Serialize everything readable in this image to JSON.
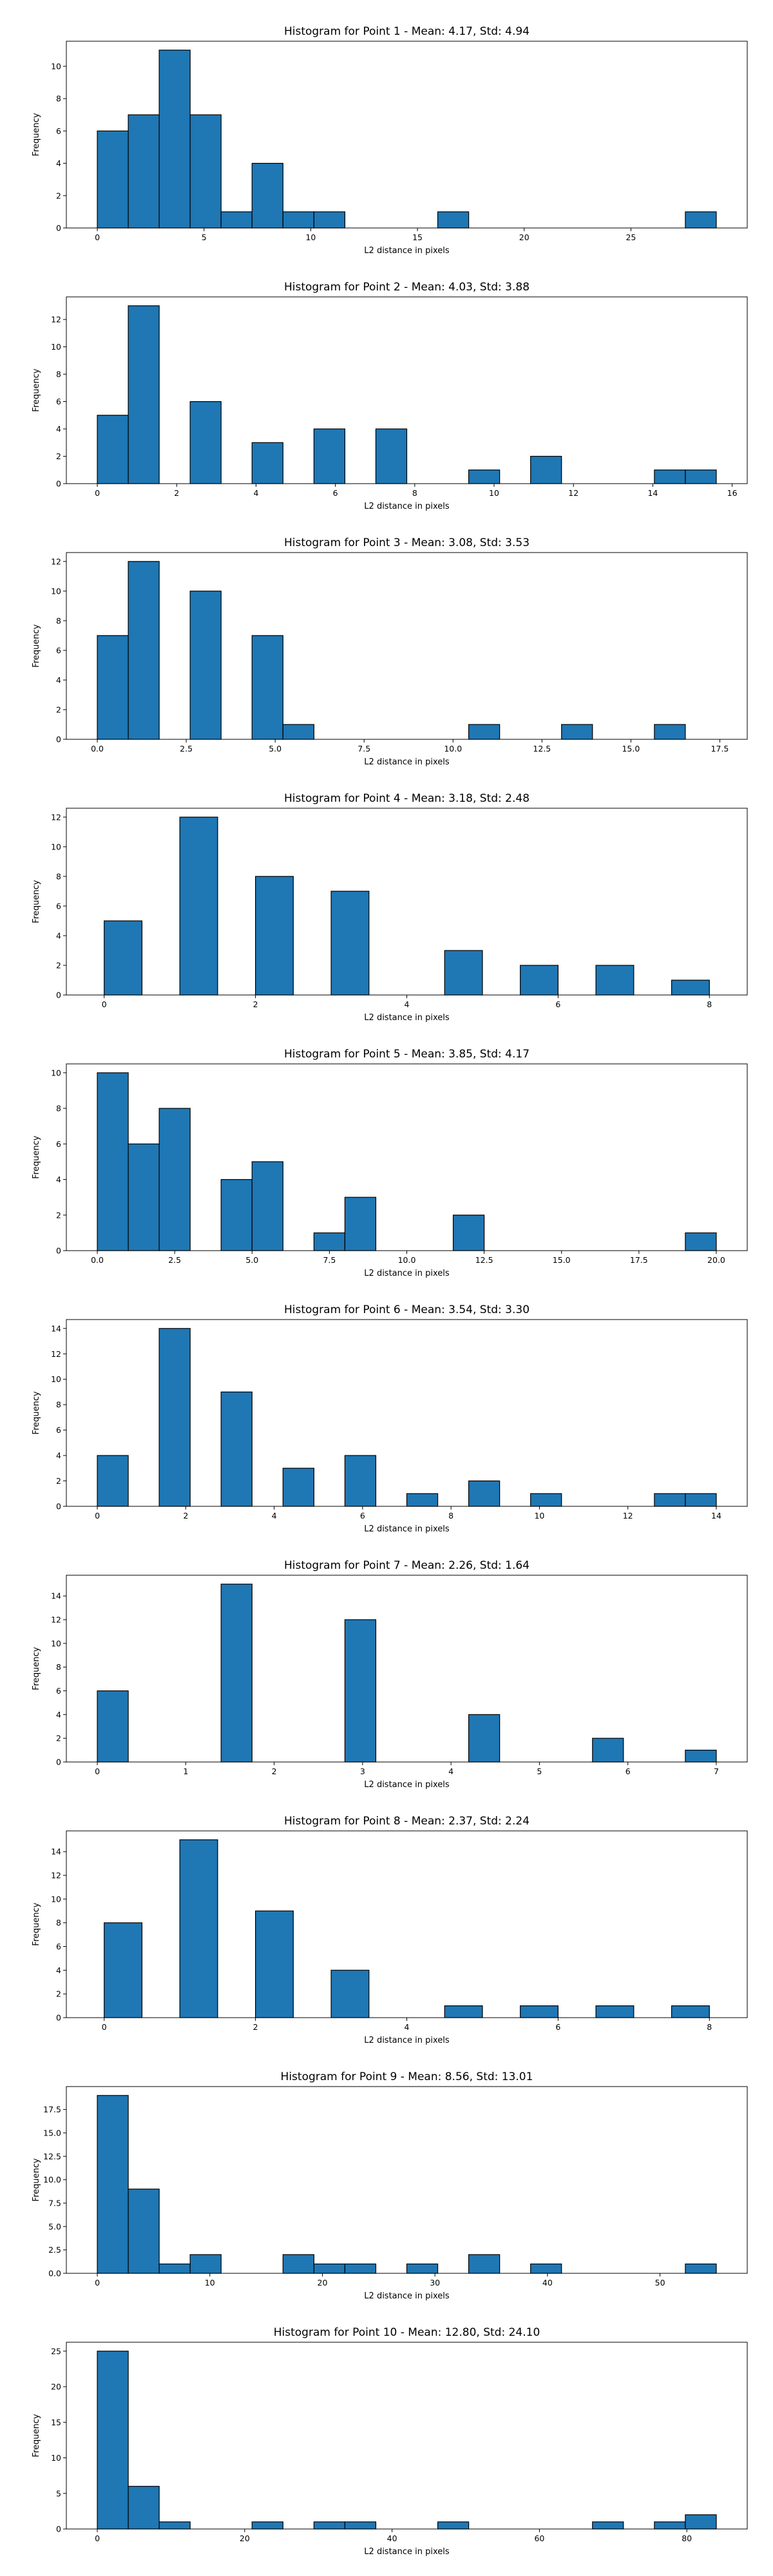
{
  "chart_data": [
    {
      "type": "bar",
      "title": "Histogram for Point 1 - Mean: 4.17, Std: 4.94",
      "xlabel": "L2 distance in pixels",
      "ylabel": "Frequency",
      "bin_width": 1.45,
      "bins": [
        [
          0,
          6
        ],
        [
          1.45,
          7
        ],
        [
          2.9,
          11
        ],
        [
          4.35,
          7
        ],
        [
          5.8,
          1
        ],
        [
          7.25,
          4
        ],
        [
          8.7,
          1
        ],
        [
          10.15,
          1
        ],
        [
          15.95,
          1
        ],
        [
          27.55,
          1
        ]
      ],
      "xlim": [
        -1.45,
        30.45
      ],
      "ylim": [
        0,
        11.55
      ],
      "xticks": [
        0,
        5,
        10,
        15,
        20,
        25
      ],
      "yticks": [
        0,
        2,
        4,
        6,
        8,
        10
      ]
    },
    {
      "type": "bar",
      "title": "Histogram for Point 2 - Mean: 4.03, Std: 3.88",
      "xlabel": "L2 distance in pixels",
      "ylabel": "Frequency",
      "bin_width": 0.78,
      "bins": [
        [
          0,
          5
        ],
        [
          0.78,
          13
        ],
        [
          2.34,
          6
        ],
        [
          3.9,
          3
        ],
        [
          5.46,
          4
        ],
        [
          7.02,
          4
        ],
        [
          9.36,
          1
        ],
        [
          10.92,
          2
        ],
        [
          14.04,
          1
        ],
        [
          14.82,
          1
        ]
      ],
      "xlim": [
        -0.78,
        16.38
      ],
      "ylim": [
        0,
        13.65
      ],
      "xticks": [
        0,
        2,
        4,
        6,
        8,
        10,
        12,
        14,
        16
      ],
      "yticks": [
        0,
        2,
        4,
        6,
        8,
        10,
        12
      ]
    },
    {
      "type": "bar",
      "title": "Histogram for Point 3 - Mean: 3.08, Std: 3.53",
      "xlabel": "L2 distance in pixels",
      "ylabel": "Frequency",
      "bin_width": 0.87,
      "bins": [
        [
          0,
          7
        ],
        [
          0.87,
          12
        ],
        [
          2.61,
          10
        ],
        [
          4.35,
          7
        ],
        [
          5.22,
          1
        ],
        [
          10.44,
          1
        ],
        [
          13.05,
          1
        ],
        [
          15.66,
          1
        ]
      ],
      "xlim": [
        -0.87,
        18.27
      ],
      "ylim": [
        0,
        12.6
      ],
      "xticks": [
        0,
        2.5,
        5,
        7.5,
        10,
        12.5,
        15,
        17.5
      ],
      "xtick_labels": [
        "0.0",
        "2.5",
        "5.0",
        "7.5",
        "10.0",
        "12.5",
        "15.0",
        "17.5"
      ],
      "yticks": [
        0,
        2,
        4,
        6,
        8,
        10,
        12
      ]
    },
    {
      "type": "bar",
      "title": "Histogram for Point 4 - Mean: 3.18, Std: 2.48",
      "xlabel": "L2 distance in pixels",
      "ylabel": "Frequency",
      "bin_width": 0.5,
      "bins": [
        [
          0,
          5
        ],
        [
          1,
          12
        ],
        [
          2,
          8
        ],
        [
          3,
          7
        ],
        [
          4.5,
          3
        ],
        [
          5.5,
          2
        ],
        [
          6.5,
          2
        ],
        [
          7.5,
          1
        ]
      ],
      "xlim": [
        -0.5,
        8.5
      ],
      "ylim": [
        0,
        12.6
      ],
      "xticks": [
        0,
        2,
        4,
        6,
        8,
        10
      ],
      "yticks": [
        0,
        2,
        4,
        6,
        8,
        10,
        12
      ],
      "note": "x axis ticks 0-10 over scale"
    },
    {
      "type": "bar",
      "title": "Histogram for Point 5 - Mean: 3.85, Std: 4.17",
      "xlabel": "L2 distance in pixels",
      "ylabel": "Frequency",
      "bin_width": 1,
      "bins": [
        [
          0,
          10
        ],
        [
          1,
          6
        ],
        [
          2,
          8
        ],
        [
          4,
          4
        ],
        [
          5,
          5
        ],
        [
          7,
          1
        ],
        [
          8,
          3
        ],
        [
          11.5,
          2
        ],
        [
          19,
          1
        ]
      ],
      "xlim": [
        -1,
        21
      ],
      "ylim": [
        0,
        10.5
      ],
      "xticks": [
        0,
        2.5,
        5,
        7.5,
        10,
        12.5,
        15,
        17.5,
        20
      ],
      "xtick_labels": [
        "0.0",
        "2.5",
        "5.0",
        "7.5",
        "10.0",
        "12.5",
        "15.0",
        "17.5",
        "20.0"
      ],
      "yticks": [
        0,
        2,
        4,
        6,
        8,
        10
      ]
    },
    {
      "type": "bar",
      "title": "Histogram for Point 6 - Mean: 3.54, Std: 3.30",
      "xlabel": "L2 distance in pixels",
      "ylabel": "Frequency",
      "bin_width": 0.7,
      "bins": [
        [
          0,
          4
        ],
        [
          1.4,
          14
        ],
        [
          2.8,
          9
        ],
        [
          4.2,
          3
        ],
        [
          5.6,
          4
        ],
        [
          7,
          1
        ],
        [
          8.4,
          2
        ],
        [
          9.8,
          1
        ],
        [
          12.6,
          1
        ],
        [
          13.3,
          1
        ]
      ],
      "xlim": [
        -0.7,
        14.7
      ],
      "ylim": [
        0,
        14.7
      ],
      "xticks": [
        0,
        2,
        4,
        6,
        8,
        10,
        12,
        14
      ],
      "yticks": [
        0,
        2,
        4,
        6,
        8,
        10,
        12,
        14
      ]
    },
    {
      "type": "bar",
      "title": "Histogram for Point 7 - Mean: 2.26, Std: 1.64",
      "xlabel": "L2 distance in pixels",
      "ylabel": "Frequency",
      "bin_width": 0.35,
      "bins": [
        [
          0,
          6
        ],
        [
          1.4,
          15
        ],
        [
          2.8,
          12
        ],
        [
          4.2,
          4
        ],
        [
          5.6,
          2
        ],
        [
          6.65,
          1
        ]
      ],
      "xlim": [
        -0.35,
        7.35
      ],
      "ylim": [
        0,
        15.75
      ],
      "xticks": [
        0,
        1,
        2,
        3,
        4,
        5,
        6,
        7
      ],
      "yticks": [
        0,
        2,
        4,
        6,
        8,
        10,
        12,
        14
      ]
    },
    {
      "type": "bar",
      "title": "Histogram for Point 8 - Mean: 2.37, Std: 2.24",
      "xlabel": "L2 distance in pixels",
      "ylabel": "Frequency",
      "bin_width": 0.5,
      "bins": [
        [
          0,
          8
        ],
        [
          1,
          15
        ],
        [
          2,
          9
        ],
        [
          3,
          4
        ],
        [
          4.5,
          1
        ],
        [
          5.5,
          1
        ],
        [
          6.5,
          1
        ],
        [
          7.5,
          1
        ]
      ],
      "xlim": [
        -0.5,
        8.5
      ],
      "ylim": [
        0,
        15.75
      ],
      "xticks": [
        0,
        2,
        4,
        6,
        8,
        10
      ],
      "yticks": [
        0,
        2,
        4,
        6,
        8,
        10,
        12,
        14
      ]
    },
    {
      "type": "bar",
      "title": "Histogram for Point 9 - Mean: 8.56, Std: 13.01",
      "xlabel": "L2 distance in pixels",
      "ylabel": "Frequency",
      "bin_width": 2.75,
      "bins": [
        [
          0,
          19
        ],
        [
          2.75,
          9
        ],
        [
          5.5,
          1
        ],
        [
          8.25,
          2
        ],
        [
          16.5,
          2
        ],
        [
          19.25,
          1
        ],
        [
          22,
          1
        ],
        [
          27.5,
          1
        ],
        [
          33,
          2
        ],
        [
          38.5,
          1
        ],
        [
          52.25,
          1
        ]
      ],
      "xlim": [
        -2.75,
        57.75
      ],
      "ylim": [
        0,
        19.95
      ],
      "xticks": [
        0,
        10,
        20,
        30,
        40,
        50
      ],
      "yticks": [
        0,
        2.5,
        5,
        7.5,
        10,
        12.5,
        15,
        17.5
      ],
      "ytick_labels": [
        "0.0",
        "2.5",
        "5.0",
        "7.5",
        "10.0",
        "12.5",
        "15.0",
        "17.5"
      ]
    },
    {
      "type": "bar",
      "title": "Histogram for Point 10 - Mean: 12.80, Std: 24.10",
      "xlabel": "L2 distance in pixels",
      "ylabel": "Frequency",
      "bin_width": 4.2,
      "bins": [
        [
          0,
          25
        ],
        [
          4.2,
          6
        ],
        [
          8.4,
          1
        ],
        [
          21,
          1
        ],
        [
          29.4,
          1
        ],
        [
          33.6,
          1
        ],
        [
          46.2,
          1
        ],
        [
          67.2,
          1
        ],
        [
          75.6,
          1
        ],
        [
          79.8,
          2
        ]
      ],
      "xlim": [
        -4.2,
        88.2
      ],
      "ylim": [
        0,
        26.25
      ],
      "xticks": [
        0,
        20,
        40,
        60,
        80
      ],
      "yticks": [
        0,
        5,
        10,
        15,
        20,
        25
      ]
    }
  ]
}
